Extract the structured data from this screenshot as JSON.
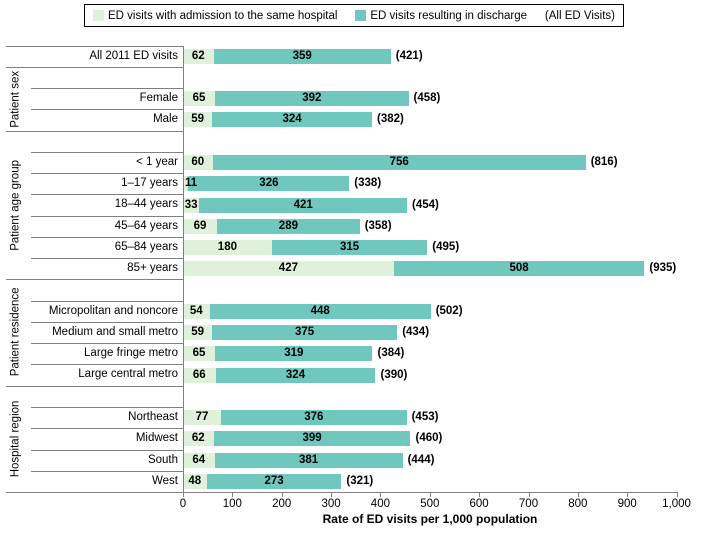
{
  "legend": {
    "admitted_label": "ED visits with admission to the same hospital",
    "discharged_label": "ED visits resulting in discharge",
    "note": "(All ED Visits)"
  },
  "colors": {
    "admitted": "#DFF1DB",
    "discharged": "#6FC7BE",
    "axis_line": "#808080",
    "text": "#000000"
  },
  "chart_data": {
    "type": "bar",
    "orientation": "horizontal",
    "stacked": true,
    "series_names": [
      "ED visits with admission to the same hospital",
      "ED visits resulting in discharge"
    ],
    "xlabel": "Rate of ED visits per 1,000 population",
    "xlim": [
      0,
      1000
    ],
    "x_tick_labels": [
      "0",
      "100",
      "200",
      "300",
      "400",
      "500",
      "600",
      "700",
      "800",
      "900",
      "1,000"
    ],
    "grid": false,
    "legend_position": "top",
    "groups": [
      {
        "label": "",
        "rows": [
          {
            "label": "All 2011 ED visits",
            "admitted": 62,
            "discharged": 359,
            "total": 421
          }
        ]
      },
      {
        "label": "Patient sex",
        "rows": [
          {
            "label": "Female",
            "admitted": 65,
            "discharged": 392,
            "total": 458
          },
          {
            "label": "Male",
            "admitted": 59,
            "discharged": 324,
            "total": 382
          }
        ]
      },
      {
        "label": "Patient age group",
        "rows": [
          {
            "label": "< 1 year",
            "admitted": 60,
            "discharged": 756,
            "total": 816
          },
          {
            "label": "1–17 years",
            "admitted": 11,
            "discharged": 326,
            "total": 338
          },
          {
            "label": "18–44 years",
            "admitted": 33,
            "discharged": 421,
            "total": 454
          },
          {
            "label": "45–64 years",
            "admitted": 69,
            "discharged": 289,
            "total": 358
          },
          {
            "label": "65–84 years",
            "admitted": 180,
            "discharged": 315,
            "total": 495
          },
          {
            "label": "85+ years",
            "admitted": 427,
            "discharged": 508,
            "total": 935
          }
        ]
      },
      {
        "label": "Patient residence",
        "rows": [
          {
            "label": "Micropolitan and noncore",
            "admitted": 54,
            "discharged": 448,
            "total": 502
          },
          {
            "label": "Medium and small metro",
            "admitted": 59,
            "discharged": 375,
            "total": 434
          },
          {
            "label": "Large fringe metro",
            "admitted": 65,
            "discharged": 319,
            "total": 384
          },
          {
            "label": "Large central metro",
            "admitted": 66,
            "discharged": 324,
            "total": 390
          }
        ]
      },
      {
        "label": "Hospital region",
        "rows": [
          {
            "label": "Northeast",
            "admitted": 77,
            "discharged": 376,
            "total": 453
          },
          {
            "label": "Midwest",
            "admitted": 62,
            "discharged": 399,
            "total": 460
          },
          {
            "label": "South",
            "admitted": 64,
            "discharged": 381,
            "total": 444
          },
          {
            "label": "West",
            "admitted": 48,
            "discharged": 273,
            "total": 321
          }
        ]
      }
    ]
  }
}
